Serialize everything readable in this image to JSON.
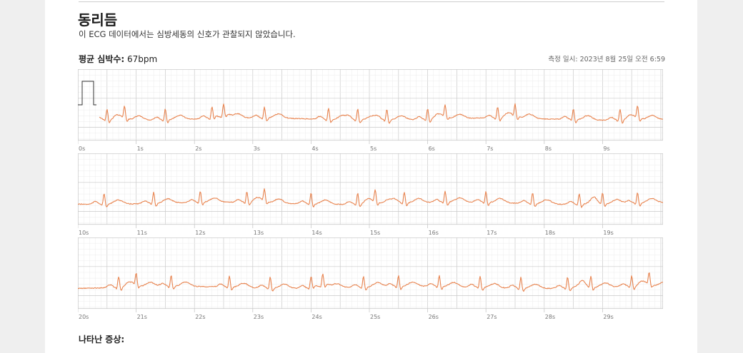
{
  "report": {
    "title": "동리듬",
    "subtitle": "이 ECG 데이터에서는 심방세동의 신호가 관찰되지 않았습니다.",
    "avg_hr_label": "평균 심박수:",
    "avg_hr_value": "67bpm",
    "measured_at": "측정 일시: 2023년 8월 25일 오전 6:59",
    "symptoms_label": "나타난 증상:"
  },
  "colors": {
    "trace": "#e8834e",
    "grid_minor": "#ececec",
    "grid_major": "#c9c9c9",
    "calibration": "#333333"
  },
  "strips": [
    {
      "id": "strip-1",
      "ticks": [
        "0s",
        "1s",
        "2s",
        "3s",
        "4s",
        "5s",
        "6s",
        "7s",
        "8s",
        "9s"
      ],
      "beats": [
        0.5,
        0.8,
        1.5,
        2.3,
        2.5,
        3.2,
        4.3,
        4.8,
        5.3,
        6.0,
        6.3,
        7.2,
        7.5,
        8.5,
        9.3,
        9.6
      ]
    },
    {
      "id": "strip-2",
      "ticks": [
        "10s",
        "11s",
        "12s",
        "13s",
        "14s",
        "15s",
        "16s",
        "17s",
        "18s",
        "19s"
      ],
      "beats": [
        10.45,
        11.3,
        12.1,
        12.9,
        13.2,
        14.0,
        14.8,
        15.1,
        15.6,
        16.3,
        17.0,
        17.8,
        18.6,
        19.0,
        19.6
      ]
    },
    {
      "id": "strip-3",
      "ticks": [
        "20s",
        "21s",
        "22s",
        "23s",
        "24s",
        "25s",
        "26s",
        "27s",
        "28s",
        "29s"
      ],
      "beats": [
        20.7,
        21.0,
        21.6,
        22.6,
        23.3,
        24.0,
        24.2,
        24.9,
        25.5,
        26.2,
        26.9,
        27.6,
        28.4,
        28.8,
        29.5,
        29.8
      ]
    }
  ]
}
